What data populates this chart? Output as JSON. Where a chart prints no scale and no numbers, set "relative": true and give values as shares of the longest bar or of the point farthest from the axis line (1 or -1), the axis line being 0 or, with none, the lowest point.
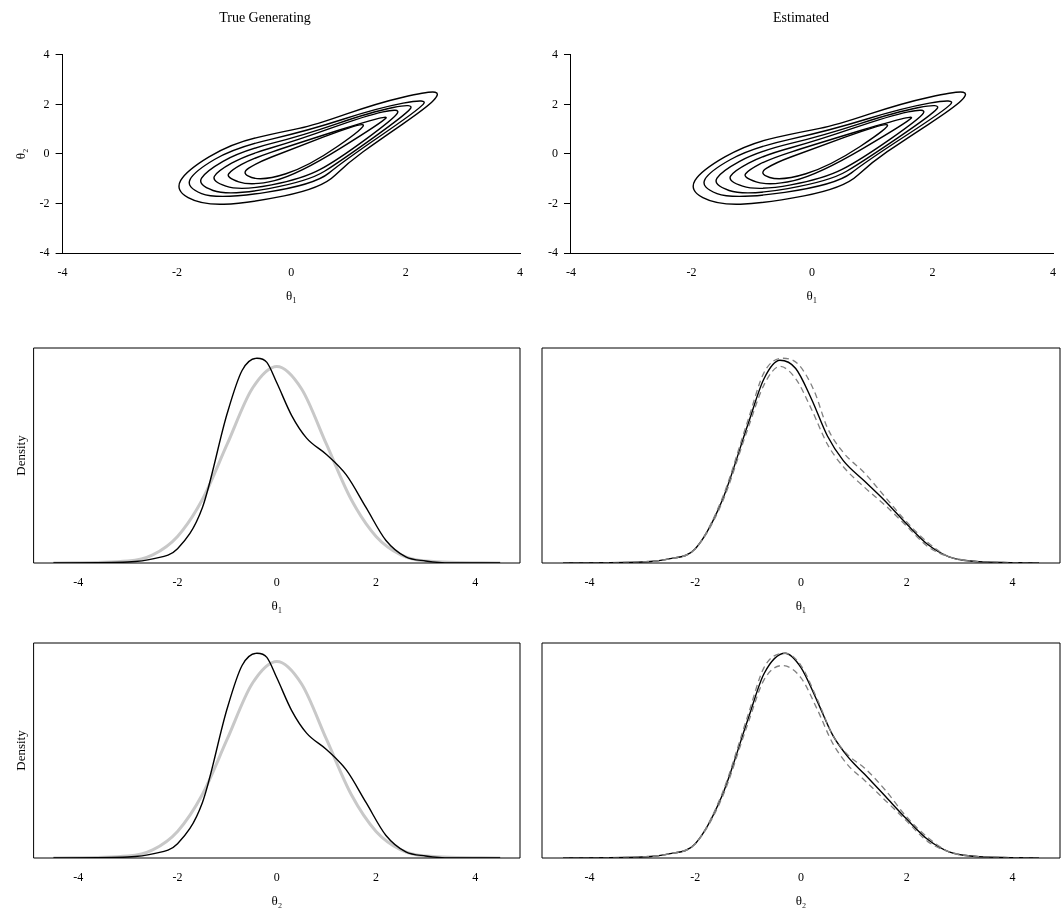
{
  "chart_data": [
    {
      "type": "line",
      "title": "True Generating",
      "xlabel": "θ₁",
      "ylabel": "θ₂",
      "xlim": [
        -4,
        4
      ],
      "xticks": [
        -4,
        -2,
        0,
        2,
        4
      ],
      "ylim": [
        -4,
        4
      ],
      "yticks": [
        -4,
        -2,
        0,
        2,
        4
      ],
      "grid": false,
      "legend": false
    },
    {
      "type": "line",
      "title": "Estimated",
      "xlabel": "θ₁",
      "xlim": [
        -4,
        4
      ],
      "xticks": [
        -4,
        -2,
        0,
        2,
        4
      ],
      "ylim": [
        -4,
        4
      ],
      "yticks": [
        -4,
        -2,
        0,
        2,
        4
      ],
      "grid": false,
      "legend": false
    },
    {
      "type": "line",
      "relative": true,
      "xlabel": "θ₁",
      "ylabel": "Density",
      "xlim": [
        -4.9,
        4.9
      ],
      "xticks": [
        -4,
        -2,
        0,
        2,
        4
      ],
      "grid": false,
      "legend": false,
      "marker": "none",
      "series": [
        {
          "color": "#000000",
          "line_style": "solid",
          "x": [
            -4.5,
            -3,
            -2.5,
            -2,
            -1.5,
            -1,
            -0.7,
            -0.4,
            -0.2,
            0,
            0.3,
            0.6,
            1,
            1.4,
            1.8,
            2.2,
            2.6,
            3,
            3.5,
            4.5
          ],
          "values": [
            0,
            0.005,
            0.02,
            0.07,
            0.27,
            0.73,
            0.94,
            1,
            0.98,
            0.88,
            0.72,
            0.61,
            0.53,
            0.43,
            0.27,
            0.11,
            0.03,
            0.01,
            0,
            0
          ]
        },
        {
          "color": "#c8c8c8",
          "line_style": "solid",
          "x": [
            -4.5,
            -3,
            -2.5,
            -2,
            -1.5,
            -1,
            -0.5,
            0,
            0.5,
            1,
            1.5,
            2,
            2.5,
            3,
            4.5
          ],
          "values": [
            0,
            0.01,
            0.04,
            0.13,
            0.31,
            0.58,
            0.85,
            0.96,
            0.85,
            0.58,
            0.31,
            0.13,
            0.04,
            0.01,
            0
          ]
        }
      ]
    },
    {
      "type": "line",
      "relative": true,
      "xlabel": "θ₁",
      "xlim": [
        -4.9,
        4.9
      ],
      "xticks": [
        -4,
        -2,
        0,
        2,
        4
      ],
      "grid": false,
      "legend": false,
      "marker": "none",
      "series": [
        {
          "color": "#808080",
          "line_style": "dashed",
          "x": [
            -4.5,
            -3,
            -2.5,
            -2,
            -1.5,
            -1,
            -0.7,
            -0.35,
            -0.05,
            0.25,
            0.5,
            0.8,
            1.2,
            1.6,
            2.0,
            2.4,
            2.8,
            3.2,
            4.5
          ],
          "values": [
            0,
            0.005,
            0.02,
            0.07,
            0.31,
            0.7,
            0.93,
            1,
            0.97,
            0.84,
            0.66,
            0.54,
            0.44,
            0.32,
            0.2,
            0.1,
            0.03,
            0.01,
            0
          ]
        },
        {
          "color": "#808080",
          "line_style": "dashed",
          "x": [
            -3,
            -2.5,
            -2,
            -1.5,
            -1,
            -0.7,
            -0.4,
            -0.1,
            0.2,
            0.5,
            0.8,
            1.2,
            1.6,
            2.0,
            2.4,
            2.8,
            3.2
          ],
          "values": [
            0.005,
            0.02,
            0.07,
            0.29,
            0.66,
            0.87,
            0.96,
            0.9,
            0.75,
            0.58,
            0.47,
            0.37,
            0.28,
            0.18,
            0.08,
            0.03,
            0.01
          ]
        },
        {
          "color": "#000000",
          "line_style": "solid",
          "x": [
            -4.5,
            -3,
            -2.5,
            -2,
            -1.5,
            -1,
            -0.7,
            -0.4,
            -0.1,
            0.2,
            0.5,
            0.8,
            1.2,
            1.6,
            2.0,
            2.4,
            2.8,
            3.2,
            4.5
          ],
          "values": [
            0,
            0.005,
            0.02,
            0.07,
            0.3,
            0.68,
            0.9,
            0.99,
            0.95,
            0.8,
            0.62,
            0.5,
            0.4,
            0.3,
            0.19,
            0.09,
            0.03,
            0.01,
            0
          ]
        }
      ]
    },
    {
      "type": "line",
      "relative": true,
      "xlabel": "θ₂",
      "ylabel": "Density",
      "xlim": [
        -4.9,
        4.9
      ],
      "xticks": [
        -4,
        -2,
        0,
        2,
        4
      ],
      "grid": false,
      "legend": false,
      "marker": "none",
      "series": [
        {
          "color": "#000000",
          "line_style": "solid",
          "x": [
            -4.5,
            -3,
            -2.5,
            -2,
            -1.5,
            -1,
            -0.7,
            -0.4,
            -0.2,
            0,
            0.3,
            0.6,
            1,
            1.4,
            1.8,
            2.2,
            2.6,
            3,
            3.5,
            4.5
          ],
          "values": [
            0,
            0.005,
            0.02,
            0.07,
            0.27,
            0.73,
            0.94,
            1,
            0.98,
            0.88,
            0.72,
            0.61,
            0.53,
            0.43,
            0.27,
            0.11,
            0.03,
            0.01,
            0,
            0
          ]
        },
        {
          "color": "#c8c8c8",
          "line_style": "solid",
          "x": [
            -4.5,
            -3,
            -2.5,
            -2,
            -1.5,
            -1,
            -0.5,
            0,
            0.5,
            1,
            1.5,
            2,
            2.5,
            3,
            4.5
          ],
          "values": [
            0,
            0.01,
            0.04,
            0.13,
            0.31,
            0.58,
            0.85,
            0.96,
            0.85,
            0.58,
            0.31,
            0.13,
            0.04,
            0.01,
            0
          ]
        }
      ]
    },
    {
      "type": "line",
      "relative": true,
      "xlabel": "θ₂",
      "xlim": [
        -4.9,
        4.9
      ],
      "xticks": [
        -4,
        -2,
        0,
        2,
        4
      ],
      "grid": false,
      "legend": false,
      "marker": "none",
      "series": [
        {
          "color": "#808080",
          "line_style": "dashed",
          "x": [
            -4.5,
            -3,
            -2.5,
            -2,
            -1.5,
            -1,
            -0.7,
            -0.3,
            0,
            0.3,
            0.6,
            0.9,
            1.2,
            1.6,
            2.0,
            2.4,
            2.8,
            3.2,
            4.5
          ],
          "values": [
            0,
            0.005,
            0.02,
            0.07,
            0.31,
            0.7,
            0.93,
            1.0,
            0.94,
            0.78,
            0.6,
            0.5,
            0.44,
            0.33,
            0.2,
            0.1,
            0.03,
            0.01,
            0
          ]
        },
        {
          "color": "#808080",
          "line_style": "dashed",
          "x": [
            -3,
            -2.5,
            -2,
            -1.5,
            -1,
            -0.7,
            -0.35,
            0,
            0.3,
            0.6,
            0.9,
            1.2,
            1.6,
            2.0,
            2.4,
            2.8,
            3.2
          ],
          "values": [
            0.005,
            0.02,
            0.07,
            0.29,
            0.66,
            0.87,
            0.94,
            0.88,
            0.73,
            0.56,
            0.45,
            0.38,
            0.28,
            0.18,
            0.08,
            0.03,
            0.01
          ]
        },
        {
          "color": "#000000",
          "line_style": "solid",
          "x": [
            -4.5,
            -3,
            -2.5,
            -2,
            -1.5,
            -1,
            -0.7,
            -0.3,
            0,
            0.3,
            0.6,
            0.9,
            1.2,
            1.6,
            2.0,
            2.4,
            2.8,
            3.2,
            4.5
          ],
          "values": [
            0,
            0.005,
            0.02,
            0.07,
            0.3,
            0.68,
            0.9,
            1,
            0.93,
            0.77,
            0.6,
            0.49,
            0.41,
            0.3,
            0.19,
            0.09,
            0.03,
            0.01,
            0
          ]
        }
      ]
    }
  ]
}
